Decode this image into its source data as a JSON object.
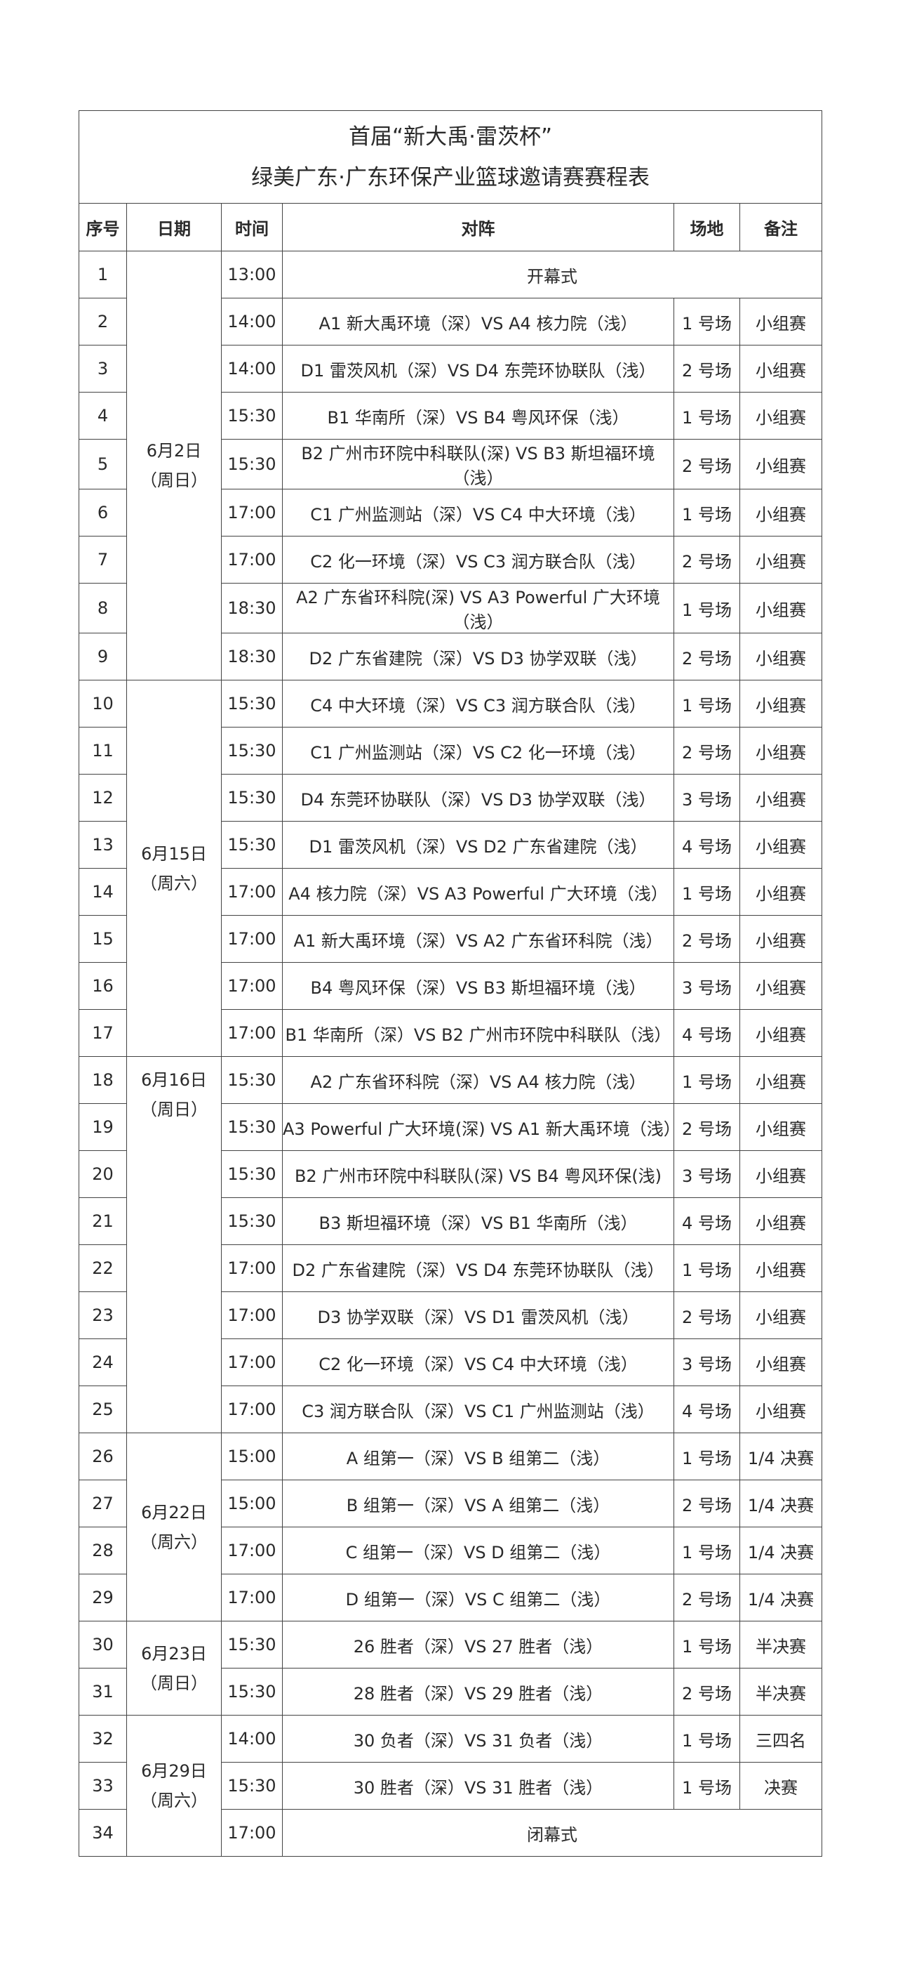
{
  "title": {
    "line1": "首届“新大禹·雷茨杯”",
    "line2": "绿美广东·广东环保产业篮球邀请赛赛程表"
  },
  "headers": [
    "序号",
    "日期",
    "时间",
    "对阵",
    "场地",
    "备注"
  ],
  "date_groups": [
    {
      "date": "6月2日",
      "weekday": "（周日）",
      "rows": 9
    },
    {
      "date": "6月15日",
      "weekday": "（周六）",
      "rows": 8
    },
    {
      "date": "6月16日",
      "weekday": "（周日）",
      "rows": 8
    },
    {
      "date": "6月22日",
      "weekday": "（周六）",
      "rows": 4
    },
    {
      "date": "6月23日",
      "weekday": "（周日）",
      "rows": 2
    },
    {
      "date": "6月29日",
      "weekday": "（周六）",
      "rows": 3
    }
  ],
  "rows": [
    {
      "no": "1",
      "time": "13:00",
      "match": "开幕式",
      "venue": "",
      "note": ""
    },
    {
      "no": "2",
      "time": "14:00",
      "match": "A1 新大禹环境（深）VS A4 核力院（浅）",
      "venue": "1 号场",
      "note": "小组赛"
    },
    {
      "no": "3",
      "time": "14:00",
      "match": "D1 雷茨风机（深）VS D4 东莞环协联队（浅）",
      "venue": "2 号场",
      "note": "小组赛"
    },
    {
      "no": "4",
      "time": "15:30",
      "match": "B1 华南所（深）VS B4 粤风环保（浅）",
      "venue": "1 号场",
      "note": "小组赛"
    },
    {
      "no": "5",
      "time": "15:30",
      "match": "B2 广州市环院中科联队(深) VS B3 斯坦福环境（浅）",
      "venue": "2 号场",
      "note": "小组赛"
    },
    {
      "no": "6",
      "time": "17:00",
      "match": "C1 广州监测站（深）VS C4 中大环境（浅）",
      "venue": "1 号场",
      "note": "小组赛"
    },
    {
      "no": "7",
      "time": "17:00",
      "match": "C2 化一环境（深）VS C3 润方联合队（浅）",
      "venue": "2 号场",
      "note": "小组赛"
    },
    {
      "no": "8",
      "time": "18:30",
      "match": "A2 广东省环科院(深) VS A3 Powerful 广大环境（浅）",
      "venue": "1 号场",
      "note": "小组赛"
    },
    {
      "no": "9",
      "time": "18:30",
      "match": "D2 广东省建院（深）VS D3 协学双联（浅）",
      "venue": "2 号场",
      "note": "小组赛"
    },
    {
      "no": "10",
      "time": "15:30",
      "match": "C4 中大环境（深）VS C3 润方联合队（浅）",
      "venue": "1 号场",
      "note": "小组赛"
    },
    {
      "no": "11",
      "time": "15:30",
      "match": "C1 广州监测站（深）VS C2 化一环境（浅）",
      "venue": "2 号场",
      "note": "小组赛"
    },
    {
      "no": "12",
      "time": "15:30",
      "match": "D4 东莞环协联队（深）VS D3 协学双联（浅）",
      "venue": "3 号场",
      "note": "小组赛"
    },
    {
      "no": "13",
      "time": "15:30",
      "match": "D1 雷茨风机（深）VS D2 广东省建院（浅）",
      "venue": "4 号场",
      "note": "小组赛"
    },
    {
      "no": "14",
      "time": "17:00",
      "match": "A4 核力院（深）VS A3 Powerful 广大环境（浅）",
      "venue": "1 号场",
      "note": "小组赛"
    },
    {
      "no": "15",
      "time": "17:00",
      "match": "A1 新大禹环境（深）VS A2 广东省环科院（浅）",
      "venue": "2 号场",
      "note": "小组赛"
    },
    {
      "no": "16",
      "time": "17:00",
      "match": "B4 粤风环保（深）VS B3 斯坦福环境（浅）",
      "venue": "3 号场",
      "note": "小组赛"
    },
    {
      "no": "17",
      "time": "17:00",
      "match": "B1 华南所（深）VS B2 广州市环院中科联队（浅）",
      "venue": "4 号场",
      "note": "小组赛"
    },
    {
      "no": "18",
      "time": "15:30",
      "match": "A2 广东省环科院（深）VS A4 核力院（浅）",
      "venue": "1 号场",
      "note": "小组赛"
    },
    {
      "no": "19",
      "time": "15:30",
      "match": "A3 Powerful 广大环境(深) VS A1 新大禹环境（浅）",
      "venue": "2 号场",
      "note": "小组赛"
    },
    {
      "no": "20",
      "time": "15:30",
      "match": "B2 广州市环院中科联队(深) VS B4 粤风环保(浅)",
      "venue": "3 号场",
      "note": "小组赛"
    },
    {
      "no": "21",
      "time": "15:30",
      "match": "B3 斯坦福环境（深）VS B1 华南所（浅）",
      "venue": "4 号场",
      "note": "小组赛"
    },
    {
      "no": "22",
      "time": "17:00",
      "match": "D2 广东省建院（深）VS D4 东莞环协联队（浅）",
      "venue": "1 号场",
      "note": "小组赛"
    },
    {
      "no": "23",
      "time": "17:00",
      "match": "D3 协学双联（深）VS D1 雷茨风机（浅）",
      "venue": "2 号场",
      "note": "小组赛"
    },
    {
      "no": "24",
      "time": "17:00",
      "match": "C2 化一环境（深）VS C4 中大环境（浅）",
      "venue": "3 号场",
      "note": "小组赛"
    },
    {
      "no": "25",
      "time": "17:00",
      "match": "C3 润方联合队（深）VS C1 广州监测站（浅）",
      "venue": "4 号场",
      "note": "小组赛"
    },
    {
      "no": "26",
      "time": "15:00",
      "match": "A 组第一（深）VS B 组第二（浅）",
      "venue": "1 号场",
      "note": "1/4 决赛"
    },
    {
      "no": "27",
      "time": "15:00",
      "match": "B 组第一（深）VS A 组第二（浅）",
      "venue": "2 号场",
      "note": "1/4 决赛"
    },
    {
      "no": "28",
      "time": "17:00",
      "match": "C 组第一（深）VS D 组第二（浅）",
      "venue": "1 号场",
      "note": "1/4 决赛"
    },
    {
      "no": "29",
      "time": "17:00",
      "match": "D 组第一（深）VS C 组第二（浅）",
      "venue": "2 号场",
      "note": "1/4 决赛"
    },
    {
      "no": "30",
      "time": "15:30",
      "match": "26 胜者（深）VS 27 胜者（浅）",
      "venue": "1 号场",
      "note": "半决赛"
    },
    {
      "no": "31",
      "time": "15:30",
      "match": "28 胜者（深）VS 29 胜者（浅）",
      "venue": "2 号场",
      "note": "半决赛"
    },
    {
      "no": "32",
      "time": "14:00",
      "match": "30 负者（深）VS 31 负者（浅）",
      "venue": "1 号场",
      "note": "三四名"
    },
    {
      "no": "33",
      "time": "15:30",
      "match": "30 胜者（深）VS 31 胜者（浅）",
      "venue": "1 号场",
      "note": "决赛"
    },
    {
      "no": "34",
      "time": "17:00",
      "match": "闭幕式",
      "venue": "",
      "note": ""
    }
  ]
}
